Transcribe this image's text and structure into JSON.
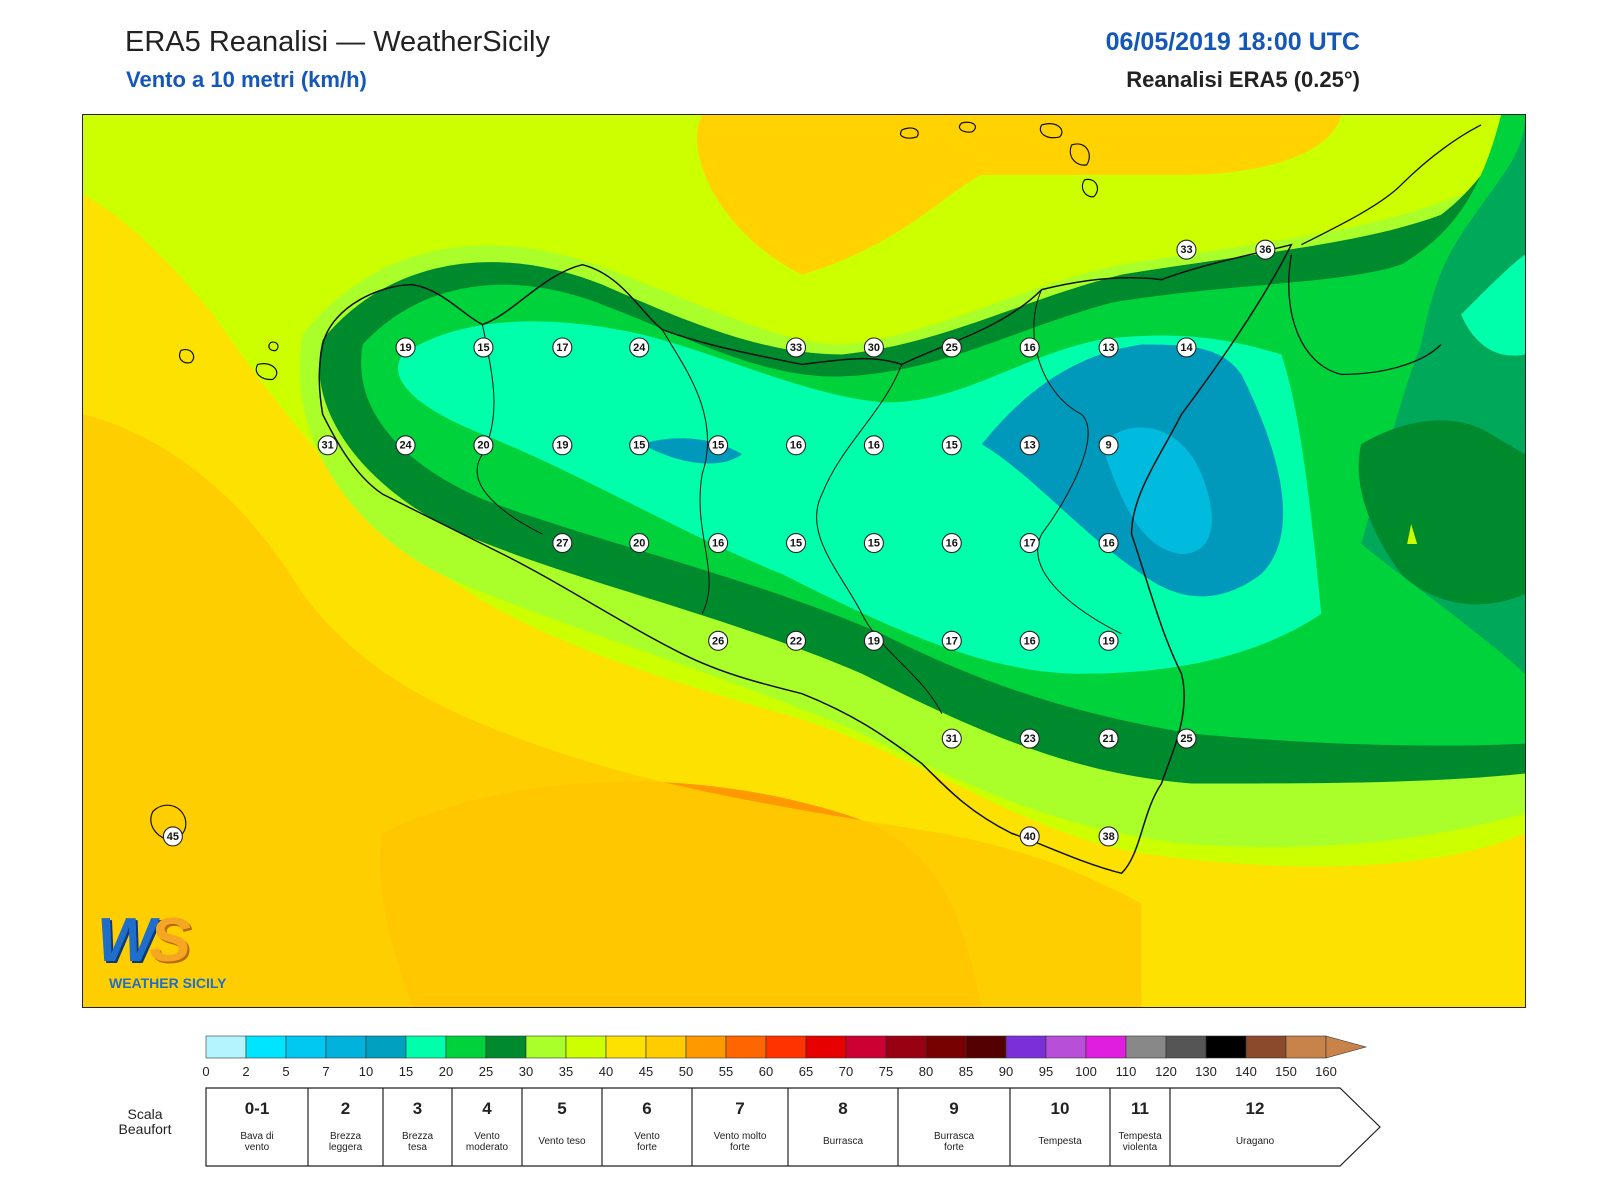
{
  "header": {
    "title": "ERA5 Reanalisi — WeatherSicily",
    "subtitle": "Vento a 10 metri (km/h)",
    "datetime": "06/05/2019 18:00 UTC",
    "model": "Reanalisi ERA5 (0.25°)"
  },
  "logo": {
    "ws": "WS",
    "text": "WEATHER SICILY"
  },
  "colors": {
    "lt_yellow_green": "#ccff00",
    "yellow_green": "#aaff2a",
    "light_green": "#00d23c",
    "green": "#00a85a",
    "dark_green": "#008a2e",
    "aqua": "#00ffaa",
    "teal": "#0099bb",
    "cyan": "#00bbdd",
    "yellow": "#fde100",
    "gold": "#ffcc00",
    "orange": "#ff9900"
  },
  "stations": [
    {
      "v": "19"
    },
    {
      "v": "15"
    },
    {
      "v": "17"
    },
    {
      "v": "24"
    },
    {
      "v": "33"
    },
    {
      "v": "30"
    },
    {
      "v": "25"
    },
    {
      "v": "16"
    },
    {
      "v": "13"
    },
    {
      "v": "14"
    },
    {
      "v": "31"
    },
    {
      "v": "24"
    },
    {
      "v": "20"
    },
    {
      "v": "19"
    },
    {
      "v": "15"
    },
    {
      "v": "15"
    },
    {
      "v": "16"
    },
    {
      "v": "16"
    },
    {
      "v": "15"
    },
    {
      "v": "13"
    },
    {
      "v": "9"
    },
    {
      "v": "27"
    },
    {
      "v": "20"
    },
    {
      "v": "16"
    },
    {
      "v": "15"
    },
    {
      "v": "15"
    },
    {
      "v": "16"
    },
    {
      "v": "17"
    },
    {
      "v": "16"
    },
    {
      "v": "26"
    },
    {
      "v": "22"
    },
    {
      "v": "19"
    },
    {
      "v": "17"
    },
    {
      "v": "16"
    },
    {
      "v": "19"
    },
    {
      "v": "31"
    },
    {
      "v": "23"
    },
    {
      "v": "21"
    },
    {
      "v": "25"
    },
    {
      "v": "40"
    },
    {
      "v": "38"
    },
    {
      "v": "45"
    },
    {
      "v": "33"
    },
    {
      "v": "36"
    }
  ],
  "legend": {
    "ticks": [
      "0",
      "2",
      "5",
      "7",
      "10",
      "15",
      "20",
      "25",
      "30",
      "35",
      "40",
      "45",
      "50",
      "55",
      "60",
      "65",
      "70",
      "75",
      "80",
      "85",
      "90",
      "95",
      "100",
      "110",
      "120",
      "130",
      "140",
      "150",
      "160"
    ],
    "swatches": [
      "#b3f4ff",
      "#00e5ff",
      "#00c8f0",
      "#00b2dc",
      "#00a0c0",
      "#00ffaa",
      "#00d23c",
      "#008a2e",
      "#aaff2a",
      "#ccff00",
      "#fde100",
      "#ffcc00",
      "#ff9900",
      "#ff6600",
      "#ff3300",
      "#e60000",
      "#cc0033",
      "#990011",
      "#770000",
      "#550000",
      "#7b2fd9",
      "#b84fd9",
      "#e01ee0",
      "#888888",
      "#555555",
      "#000000",
      "#8b4a2b",
      "#c8834a"
    ],
    "scale_label": "Scala Beaufort",
    "beaufort": [
      {
        "n": "0-1",
        "l1": "Bava di",
        "l2": "vento"
      },
      {
        "n": "2",
        "l1": "Brezza",
        "l2": "leggera"
      },
      {
        "n": "3",
        "l1": "Brezza",
        "l2": "tesa"
      },
      {
        "n": "4",
        "l1": "Vento",
        "l2": "moderato"
      },
      {
        "n": "5",
        "l1": "Vento teso",
        "l2": ""
      },
      {
        "n": "6",
        "l1": "Vento",
        "l2": "forte"
      },
      {
        "n": "7",
        "l1": "Vento molto",
        "l2": "forte"
      },
      {
        "n": "8",
        "l1": "Burrasca",
        "l2": ""
      },
      {
        "n": "9",
        "l1": "Burrasca",
        "l2": "forte"
      },
      {
        "n": "10",
        "l1": "Tempesta",
        "l2": ""
      },
      {
        "n": "11",
        "l1": "Tempesta",
        "l2": "violenta"
      },
      {
        "n": "12",
        "l1": "Uragano",
        "l2": ""
      }
    ]
  }
}
